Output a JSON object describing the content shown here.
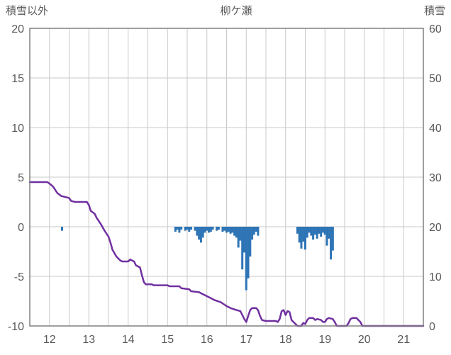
{
  "chart_data": {
    "type": "line+bar",
    "title": "柳ケ瀬",
    "left_axis_label": "積雪以外",
    "right_axis_label": "積雪",
    "xlim": [
      11.5,
      21.5
    ],
    "x_ticks": [
      12,
      13,
      14,
      15,
      16,
      17,
      18,
      19,
      20,
      21
    ],
    "left_ylim": [
      -10,
      20
    ],
    "left_yticks": [
      20,
      15,
      10,
      5,
      0,
      -5,
      -10
    ],
    "right_ylim": [
      0,
      60
    ],
    "right_yticks": [
      60,
      50,
      40,
      30,
      20,
      10,
      0
    ],
    "grid": {
      "vertical_interval": 0.5,
      "horizontal_interval": 5,
      "grid_on": true
    },
    "colors": {
      "line": "#7030A0",
      "bar": "#2E75B6",
      "grid": "#c9c9c9",
      "border": "#808080",
      "text": "#595959"
    },
    "series": [
      {
        "name": "snow-depth-line",
        "type": "line",
        "axis": "left",
        "points": [
          [
            11.5,
            4.5
          ],
          [
            11.95,
            4.5
          ],
          [
            12.05,
            4.2
          ],
          [
            12.1,
            4.0
          ],
          [
            12.2,
            3.4
          ],
          [
            12.3,
            3.1
          ],
          [
            12.4,
            3.0
          ],
          [
            12.5,
            2.9
          ],
          [
            12.55,
            2.6
          ],
          [
            12.65,
            2.5
          ],
          [
            12.95,
            2.5
          ],
          [
            13.0,
            2.2
          ],
          [
            13.05,
            1.6
          ],
          [
            13.15,
            1.3
          ],
          [
            13.2,
            0.9
          ],
          [
            13.3,
            0.3
          ],
          [
            13.4,
            -0.4
          ],
          [
            13.5,
            -1.0
          ],
          [
            13.55,
            -1.6
          ],
          [
            13.6,
            -2.3
          ],
          [
            13.7,
            -3.0
          ],
          [
            13.8,
            -3.4
          ],
          [
            13.85,
            -3.5
          ],
          [
            14.0,
            -3.5
          ],
          [
            14.05,
            -3.3
          ],
          [
            14.1,
            -3.4
          ],
          [
            14.15,
            -3.5
          ],
          [
            14.2,
            -3.9
          ],
          [
            14.3,
            -4.1
          ],
          [
            14.35,
            -4.9
          ],
          [
            14.4,
            -5.6
          ],
          [
            14.45,
            -5.8
          ],
          [
            14.6,
            -5.8
          ],
          [
            14.65,
            -5.9
          ],
          [
            15.0,
            -5.9
          ],
          [
            15.05,
            -6.0
          ],
          [
            15.3,
            -6.0
          ],
          [
            15.35,
            -6.2
          ],
          [
            15.55,
            -6.3
          ],
          [
            15.6,
            -6.5
          ],
          [
            15.8,
            -6.6
          ],
          [
            15.9,
            -6.8
          ],
          [
            16.0,
            -7.0
          ],
          [
            16.1,
            -7.2
          ],
          [
            16.2,
            -7.4
          ],
          [
            16.35,
            -7.6
          ],
          [
            16.5,
            -8.0
          ],
          [
            16.6,
            -8.2
          ],
          [
            16.75,
            -8.4
          ],
          [
            16.85,
            -8.5
          ],
          [
            16.9,
            -8.9
          ],
          [
            16.95,
            -9.3
          ],
          [
            17.0,
            -9.6
          ],
          [
            17.05,
            -9.0
          ],
          [
            17.1,
            -8.4
          ],
          [
            17.15,
            -8.2
          ],
          [
            17.25,
            -8.2
          ],
          [
            17.3,
            -8.4
          ],
          [
            17.35,
            -9.0
          ],
          [
            17.4,
            -9.4
          ],
          [
            17.5,
            -9.5
          ],
          [
            17.75,
            -9.5
          ],
          [
            17.8,
            -9.6
          ],
          [
            17.85,
            -9.3
          ],
          [
            17.9,
            -8.5
          ],
          [
            17.95,
            -8.4
          ],
          [
            18.0,
            -8.9
          ],
          [
            18.05,
            -8.5
          ],
          [
            18.1,
            -8.6
          ],
          [
            18.15,
            -9.4
          ],
          [
            18.2,
            -9.6
          ],
          [
            18.3,
            -10.0
          ],
          [
            18.4,
            -10.0
          ],
          [
            18.45,
            -9.7
          ],
          [
            18.5,
            -9.8
          ],
          [
            18.55,
            -9.4
          ],
          [
            18.6,
            -9.2
          ],
          [
            18.7,
            -9.2
          ],
          [
            18.75,
            -9.4
          ],
          [
            18.8,
            -9.3
          ],
          [
            18.9,
            -9.4
          ],
          [
            18.95,
            -9.6
          ],
          [
            19.0,
            -9.6
          ],
          [
            19.05,
            -9.3
          ],
          [
            19.1,
            -9.2
          ],
          [
            19.2,
            -9.3
          ],
          [
            19.25,
            -9.6
          ],
          [
            19.3,
            -10.0
          ],
          [
            19.55,
            -10.0
          ],
          [
            19.6,
            -9.7
          ],
          [
            19.65,
            -9.3
          ],
          [
            19.7,
            -9.2
          ],
          [
            19.8,
            -9.2
          ],
          [
            19.85,
            -9.4
          ],
          [
            19.9,
            -9.6
          ],
          [
            19.95,
            -10.0
          ],
          [
            21.5,
            -10.0
          ]
        ]
      },
      {
        "name": "precip-bars",
        "type": "bar",
        "axis": "left",
        "points": [
          [
            12.32,
            -0.4
          ],
          [
            15.2,
            -0.5
          ],
          [
            15.25,
            -0.3
          ],
          [
            15.3,
            -0.6
          ],
          [
            15.35,
            -0.3
          ],
          [
            15.45,
            -0.4
          ],
          [
            15.5,
            -0.3
          ],
          [
            15.55,
            -0.5
          ],
          [
            15.6,
            -0.3
          ],
          [
            15.7,
            -0.4
          ],
          [
            15.75,
            -0.9
          ],
          [
            15.8,
            -1.3
          ],
          [
            15.85,
            -1.6
          ],
          [
            15.9,
            -1.1
          ],
          [
            15.95,
            -0.6
          ],
          [
            16.0,
            -0.4
          ],
          [
            16.05,
            -0.6
          ],
          [
            16.1,
            -0.5
          ],
          [
            16.15,
            -0.3
          ],
          [
            16.25,
            -0.4
          ],
          [
            16.3,
            -0.3
          ],
          [
            16.4,
            -0.5
          ],
          [
            16.45,
            -0.4
          ],
          [
            16.5,
            -0.6
          ],
          [
            16.55,
            -0.5
          ],
          [
            16.6,
            -0.7
          ],
          [
            16.65,
            -0.6
          ],
          [
            16.7,
            -0.9
          ],
          [
            16.75,
            -1.1
          ],
          [
            16.8,
            -2.1
          ],
          [
            16.85,
            -1.4
          ],
          [
            16.9,
            -4.3
          ],
          [
            16.95,
            -2.6
          ],
          [
            17.0,
            -6.4
          ],
          [
            17.05,
            -5.2
          ],
          [
            17.1,
            -3.0
          ],
          [
            17.15,
            -1.3
          ],
          [
            17.2,
            -0.8
          ],
          [
            17.25,
            -0.5
          ],
          [
            17.3,
            -0.9
          ],
          [
            18.3,
            -0.7
          ],
          [
            18.35,
            -1.6
          ],
          [
            18.4,
            -2.2
          ],
          [
            18.45,
            -1.5
          ],
          [
            18.5,
            -2.3
          ],
          [
            18.55,
            -1.1
          ],
          [
            18.6,
            -0.6
          ],
          [
            18.65,
            -0.9
          ],
          [
            18.7,
            -1.3
          ],
          [
            18.75,
            -0.8
          ],
          [
            18.8,
            -1.2
          ],
          [
            18.85,
            -0.7
          ],
          [
            18.9,
            -1.0
          ],
          [
            18.95,
            -0.6
          ],
          [
            19.0,
            -0.8
          ],
          [
            19.05,
            -1.9
          ],
          [
            19.1,
            -1.2
          ],
          [
            19.15,
            -3.3
          ],
          [
            19.2,
            -2.4
          ]
        ]
      }
    ]
  }
}
